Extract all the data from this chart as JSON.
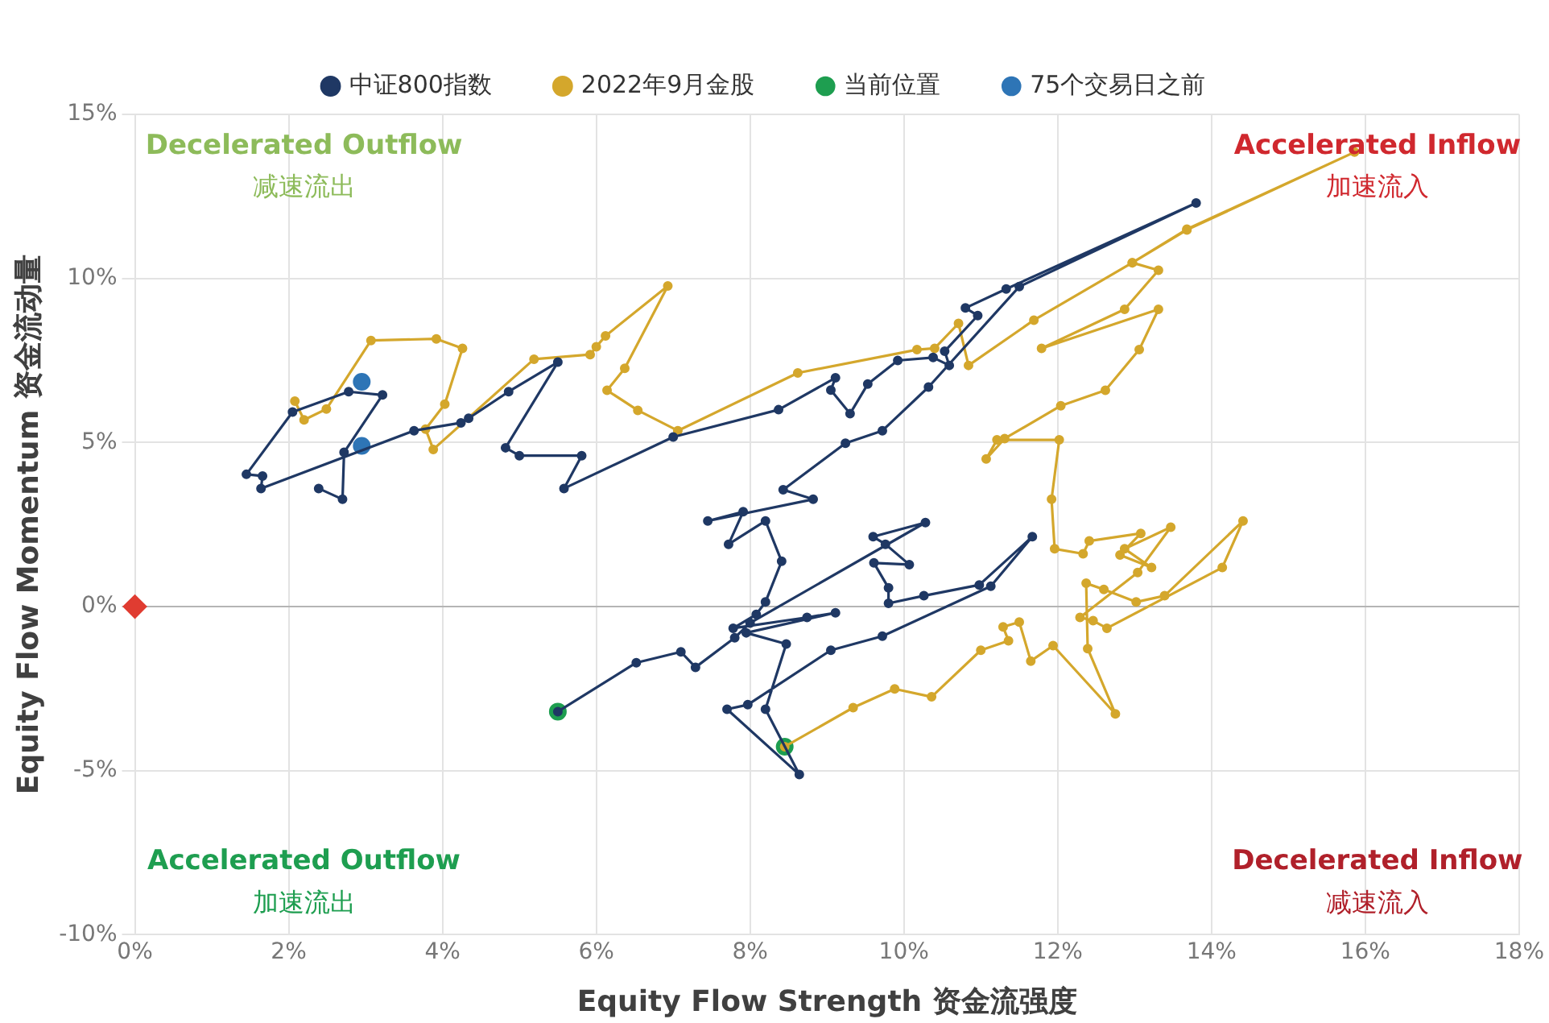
{
  "chart_data": {
    "type": "line",
    "xlabel": "Equity Flow Strength 资金流强度",
    "ylabel": "Equity Flow Momentum 资金流动量",
    "xlim": [
      0,
      18
    ],
    "xticks": [
      {
        "value": 0,
        "label": "0%"
      },
      {
        "value": 2,
        "label": "2%"
      },
      {
        "value": 4,
        "label": "4%"
      },
      {
        "value": 6,
        "label": "6%"
      },
      {
        "value": 8,
        "label": "8%"
      },
      {
        "value": 10,
        "label": "10%"
      },
      {
        "value": 12,
        "label": "12%"
      },
      {
        "value": 14,
        "label": "14%"
      },
      {
        "value": 16,
        "label": "16%"
      },
      {
        "value": 18,
        "label": "18%"
      }
    ],
    "ylim": [
      -10,
      15
    ],
    "yticks": [
      {
        "value": -10,
        "label": "-10%"
      },
      {
        "value": -5,
        "label": "-5%"
      },
      {
        "value": 0,
        "label": "0%"
      },
      {
        "value": 5,
        "label": "5%"
      },
      {
        "value": 10,
        "label": "10%"
      },
      {
        "value": 15,
        "label": "15%"
      }
    ],
    "grid": true,
    "legend": "top",
    "marker": "circle",
    "line_style": "solid",
    "annotations": [
      "Decelerated Outflow",
      "减速流出",
      "Accelerated Inflow",
      "加速流入",
      "Accelerated Outflow",
      "加速流出",
      "Decelerated Inflow",
      "减速流入"
    ],
    "series": [
      {
        "name": "中证800指数",
        "color": "#1f3864",
        "x": [
          2.39,
          2.7,
          2.72,
          3.22,
          2.78,
          2.05,
          1.45,
          1.66,
          1.64,
          3.63,
          4.24,
          4.34,
          4.86,
          5.5,
          4.82,
          5.0,
          5.81,
          5.58,
          7.0,
          8.37,
          9.11,
          9.05,
          9.3,
          9.53,
          9.92,
          10.38,
          10.59,
          10.53,
          10.96,
          10.8,
          11.33,
          13.8,
          11.5,
          10.32,
          9.72,
          9.24,
          8.43,
          8.82,
          7.45,
          7.91,
          7.72,
          8.2,
          8.41,
          8.2,
          8.08,
          7.78,
          8.74,
          9.11,
          7.95,
          8.47,
          8.2,
          8.64,
          7.7,
          7.97,
          9.05,
          9.72,
          11.13,
          11.67,
          10.98,
          10.26,
          9.8,
          9.8,
          9.61,
          10.07,
          9.76,
          9.6,
          10.28,
          8.0,
          7.8,
          7.29,
          7.1,
          6.52,
          5.5
        ],
        "values": [
          3.6,
          3.27,
          4.7,
          6.45,
          6.55,
          5.93,
          4.03,
          3.98,
          3.6,
          5.36,
          5.6,
          5.74,
          6.55,
          7.45,
          4.84,
          4.6,
          4.6,
          3.6,
          5.17,
          6.0,
          6.97,
          6.6,
          5.88,
          6.78,
          7.5,
          7.59,
          7.35,
          7.78,
          8.87,
          9.1,
          9.68,
          12.3,
          9.75,
          6.69,
          5.36,
          4.98,
          3.56,
          3.27,
          2.61,
          2.89,
          1.9,
          2.61,
          1.38,
          0.14,
          -0.24,
          -0.66,
          -0.33,
          -0.19,
          -0.8,
          -1.14,
          -3.13,
          -5.12,
          -3.13,
          -2.99,
          -1.33,
          -0.9,
          0.62,
          2.13,
          0.66,
          0.33,
          0.1,
          0.57,
          1.33,
          1.28,
          1.9,
          2.13,
          2.56,
          -0.5,
          -0.95,
          -1.85,
          -1.38,
          -1.71,
          -3.2
        ]
      },
      {
        "name": "2022年9月金股",
        "color": "#d4a72c",
        "x": [
          2.08,
          2.2,
          2.49,
          3.07,
          3.92,
          4.26,
          4.03,
          3.78,
          3.88,
          5.19,
          5.92,
          6.0,
          6.12,
          6.93,
          6.37,
          6.14,
          6.54,
          7.06,
          8.62,
          10.17,
          10.4,
          10.71,
          10.84,
          11.69,
          12.97,
          13.68,
          15.86,
          13.68,
          12.97,
          13.31,
          12.87,
          11.79,
          13.31,
          13.06,
          12.62,
          12.04,
          11.31,
          11.07,
          11.21,
          12.02,
          11.92,
          11.96,
          12.33,
          12.41,
          13.08,
          12.81,
          13.22,
          12.87,
          13.47,
          13.04,
          12.29,
          12.46,
          12.64,
          14.14,
          14.41,
          13.39,
          13.02,
          12.6,
          12.37,
          12.39,
          12.75,
          11.94,
          11.65,
          11.5,
          11.29,
          11.36,
          11.0,
          10.36,
          9.88,
          9.34,
          8.45
        ],
        "values": [
          6.26,
          5.69,
          6.02,
          8.11,
          8.16,
          7.87,
          6.17,
          5.41,
          4.79,
          7.54,
          7.68,
          7.92,
          8.25,
          9.77,
          7.26,
          6.59,
          5.98,
          5.36,
          7.12,
          7.83,
          7.87,
          8.63,
          7.35,
          8.73,
          10.48,
          11.48,
          13.85,
          11.5,
          10.48,
          10.25,
          9.06,
          7.87,
          9.06,
          7.83,
          6.59,
          6.12,
          5.12,
          4.5,
          5.08,
          5.08,
          3.27,
          1.76,
          1.61,
          2.0,
          2.23,
          1.57,
          1.19,
          1.76,
          2.42,
          1.04,
          -0.33,
          -0.43,
          -0.66,
          1.19,
          2.61,
          0.33,
          0.14,
          0.52,
          0.71,
          -1.28,
          -3.27,
          -1.19,
          -1.66,
          -0.47,
          -0.62,
          -1.04,
          -1.33,
          -2.75,
          -2.51,
          -3.08,
          -4.27
        ]
      },
      {
        "name": "当前位置",
        "color": "#1e9e50",
        "type": "scatter",
        "x": [
          5.5,
          8.45
        ],
        "values": [
          -3.2,
          -4.27
        ]
      },
      {
        "name": "75个交易日之前",
        "color": "#2e75b6",
        "type": "scatter",
        "x": [
          2.95,
          2.95
        ],
        "values": [
          6.85,
          4.9
        ]
      },
      {
        "color": "#e03c31",
        "type": "scatter",
        "marker": "diamond",
        "x": [
          0
        ],
        "values": [
          0
        ]
      }
    ]
  }
}
